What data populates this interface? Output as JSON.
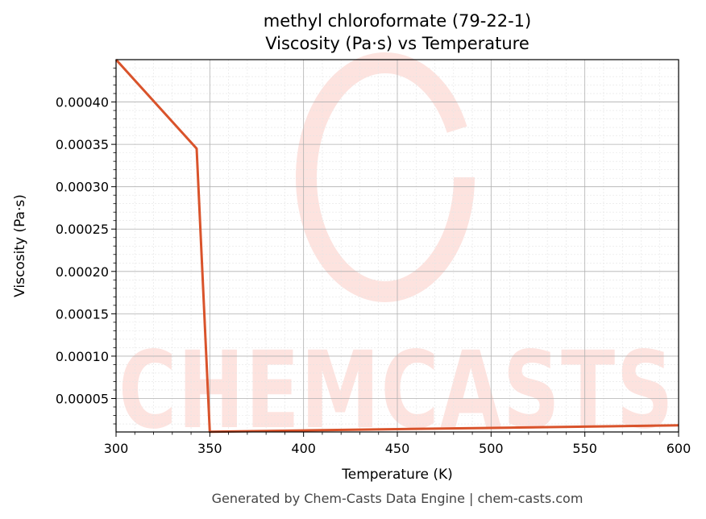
{
  "chart_data": {
    "type": "line",
    "title": "methyl chloroformate (79-22-1)",
    "subtitle": "Viscosity (Pa·s) vs Temperature",
    "xlabel": "Temperature (K)",
    "ylabel": "Viscosity (Pa·s)",
    "xlim": [
      300,
      600
    ],
    "ylim": [
      1.05e-05,
      0.00045
    ],
    "xticks": [
      300,
      350,
      400,
      450,
      500,
      550,
      600
    ],
    "xtick_labels": [
      "300",
      "350",
      "400",
      "450",
      "500",
      "550",
      "600"
    ],
    "yticks": [
      5e-05,
      0.0001,
      0.00015,
      0.0002,
      0.00025,
      0.0003,
      0.00035,
      0.0004
    ],
    "ytick_labels": [
      "0.00005",
      "0.00010",
      "0.00015",
      "0.00020",
      "0.00025",
      "0.00030",
      "0.00035",
      "0.00040"
    ],
    "grid": true,
    "series": [
      {
        "color": "#d9532b",
        "x": [
          300,
          343,
          350,
          400,
          450,
          500,
          550,
          600
        ],
        "y": [
          0.00045,
          0.000345,
          1.08e-05,
          1.23e-05,
          1.38e-05,
          1.53e-05,
          1.68e-05,
          1.83e-05
        ]
      }
    ]
  },
  "watermark": {
    "text": "CHEMCASTS",
    "color": "#fde3df"
  },
  "footer": {
    "text": "Generated by Chem-Casts Data Engine | chem-casts.com"
  }
}
